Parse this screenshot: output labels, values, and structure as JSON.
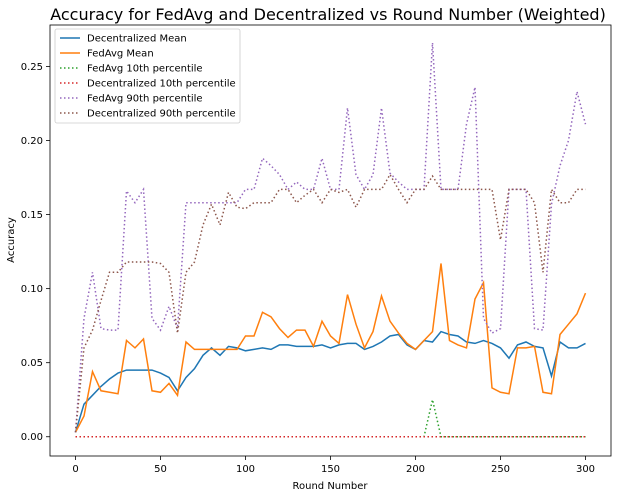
{
  "chart_data": {
    "type": "line",
    "title": "Accuracy for FedAvg and Decentralized vs Round Number (Weighted)",
    "xlabel": "Round Number",
    "ylabel": "Accuracy",
    "xlim": [
      -15,
      315
    ],
    "ylim": [
      -0.013,
      0.278
    ],
    "xticks": [
      0,
      50,
      100,
      150,
      200,
      250,
      300
    ],
    "xtick_labels": [
      "0",
      "50",
      "100",
      "150",
      "200",
      "250",
      "300"
    ],
    "yticks": [
      0.0,
      0.05,
      0.1,
      0.15,
      0.2,
      0.25
    ],
    "ytick_labels": [
      "0.00",
      "0.05",
      "0.10",
      "0.15",
      "0.20",
      "0.25"
    ],
    "grid": false,
    "legend_position": "top-left",
    "x": [
      0,
      5,
      10,
      15,
      20,
      25,
      30,
      35,
      40,
      45,
      50,
      55,
      60,
      65,
      70,
      75,
      80,
      85,
      90,
      95,
      100,
      105,
      110,
      115,
      120,
      125,
      130,
      135,
      140,
      145,
      150,
      155,
      160,
      165,
      170,
      175,
      180,
      185,
      190,
      195,
      200,
      205,
      210,
      215,
      220,
      225,
      230,
      235,
      240,
      245,
      250,
      255,
      260,
      265,
      270,
      275,
      280,
      285,
      290,
      295,
      300
    ],
    "series": [
      {
        "name": "Decentralized Mean",
        "color": "#1f77b4",
        "style": "solid",
        "values": [
          0.003,
          0.022,
          0.028,
          0.034,
          0.039,
          0.043,
          0.045,
          0.045,
          0.045,
          0.045,
          0.043,
          0.04,
          0.031,
          0.04,
          0.046,
          0.055,
          0.06,
          0.055,
          0.061,
          0.06,
          0.058,
          0.059,
          0.06,
          0.059,
          0.062,
          0.062,
          0.061,
          0.061,
          0.061,
          0.062,
          0.06,
          0.062,
          0.063,
          0.063,
          0.059,
          0.061,
          0.064,
          0.068,
          0.069,
          0.062,
          0.059,
          0.065,
          0.064,
          0.071,
          0.069,
          0.068,
          0.064,
          0.063,
          0.065,
          0.063,
          0.06,
          0.053,
          0.062,
          0.064,
          0.061,
          0.06,
          0.041,
          0.064,
          0.06,
          0.06,
          0.063
        ]
      },
      {
        "name": "FedAvg Mean",
        "color": "#ff7f0e",
        "style": "solid",
        "values": [
          0.003,
          0.014,
          0.044,
          0.031,
          0.03,
          0.029,
          0.065,
          0.06,
          0.066,
          0.031,
          0.03,
          0.036,
          0.028,
          0.064,
          0.059,
          0.059,
          0.059,
          0.059,
          0.059,
          0.059,
          0.068,
          0.068,
          0.084,
          0.081,
          0.073,
          0.067,
          0.072,
          0.072,
          0.061,
          0.078,
          0.068,
          0.063,
          0.096,
          0.076,
          0.06,
          0.071,
          0.095,
          0.078,
          0.07,
          0.063,
          0.059,
          0.065,
          0.071,
          0.117,
          0.065,
          0.062,
          0.06,
          0.093,
          0.104,
          0.033,
          0.03,
          0.029,
          0.06,
          0.06,
          0.061,
          0.03,
          0.029,
          0.069,
          0.076,
          0.083,
          0.097
        ]
      },
      {
        "name": "FedAvg 10th percentile",
        "color": "#2ca02c",
        "style": "dotted",
        "values": [
          0,
          0,
          0,
          0,
          0,
          0,
          0,
          0,
          0,
          0,
          0,
          0,
          0,
          0,
          0,
          0,
          0,
          0,
          0,
          0,
          0,
          0,
          0,
          0,
          0,
          0,
          0,
          0,
          0,
          0,
          0,
          0,
          0,
          0,
          0,
          0,
          0,
          0,
          0,
          0,
          0,
          0,
          0.025,
          0,
          0,
          0,
          0,
          0,
          0,
          0,
          0,
          0,
          0,
          0,
          0,
          0,
          0,
          0,
          0,
          0,
          0
        ]
      },
      {
        "name": "Decentralized 10th percentile",
        "color": "#d62728",
        "style": "dotted",
        "values": [
          0,
          0,
          0,
          0,
          0,
          0,
          0,
          0,
          0,
          0,
          0,
          0,
          0,
          0,
          0,
          0,
          0,
          0,
          0,
          0,
          0,
          0,
          0,
          0,
          0,
          0,
          0,
          0,
          0,
          0,
          0,
          0,
          0,
          0,
          0,
          0,
          0,
          0,
          0,
          0,
          0,
          0,
          0,
          0,
          0,
          0,
          0,
          0,
          0,
          0,
          0,
          0,
          0,
          0,
          0,
          0,
          0,
          0,
          0,
          0,
          0
        ]
      },
      {
        "name": "FedAvg 90th percentile",
        "color": "#9467bd",
        "style": "dotted",
        "values": [
          0.003,
          0.08,
          0.111,
          0.073,
          0.072,
          0.072,
          0.166,
          0.158,
          0.167,
          0.08,
          0.072,
          0.088,
          0.073,
          0.158,
          0.158,
          0.158,
          0.158,
          0.158,
          0.158,
          0.158,
          0.167,
          0.167,
          0.188,
          0.183,
          0.177,
          0.167,
          0.172,
          0.167,
          0.167,
          0.188,
          0.167,
          0.167,
          0.222,
          0.177,
          0.167,
          0.177,
          0.222,
          0.178,
          0.172,
          0.167,
          0.167,
          0.167,
          0.266,
          0.167,
          0.167,
          0.167,
          0.211,
          0.236,
          0.08,
          0.07,
          0.073,
          0.167,
          0.167,
          0.167,
          0.073,
          0.072,
          0.157,
          0.183,
          0.2,
          0.233,
          0.211
        ]
      },
      {
        "name": "Decentralized 90th percentile",
        "color": "#8c564b",
        "style": "dotted",
        "values": [
          0.003,
          0.06,
          0.072,
          0.092,
          0.111,
          0.111,
          0.118,
          0.118,
          0.118,
          0.118,
          0.117,
          0.111,
          0.07,
          0.111,
          0.118,
          0.143,
          0.157,
          0.143,
          0.165,
          0.155,
          0.154,
          0.158,
          0.158,
          0.158,
          0.167,
          0.167,
          0.158,
          0.163,
          0.167,
          0.158,
          0.167,
          0.165,
          0.167,
          0.155,
          0.167,
          0.167,
          0.167,
          0.177,
          0.167,
          0.158,
          0.167,
          0.167,
          0.176,
          0.167,
          0.167,
          0.167,
          0.167,
          0.167,
          0.167,
          0.167,
          0.133,
          0.167,
          0.167,
          0.167,
          0.158,
          0.111,
          0.167,
          0.158,
          0.158,
          0.167,
          0.167
        ]
      }
    ]
  }
}
